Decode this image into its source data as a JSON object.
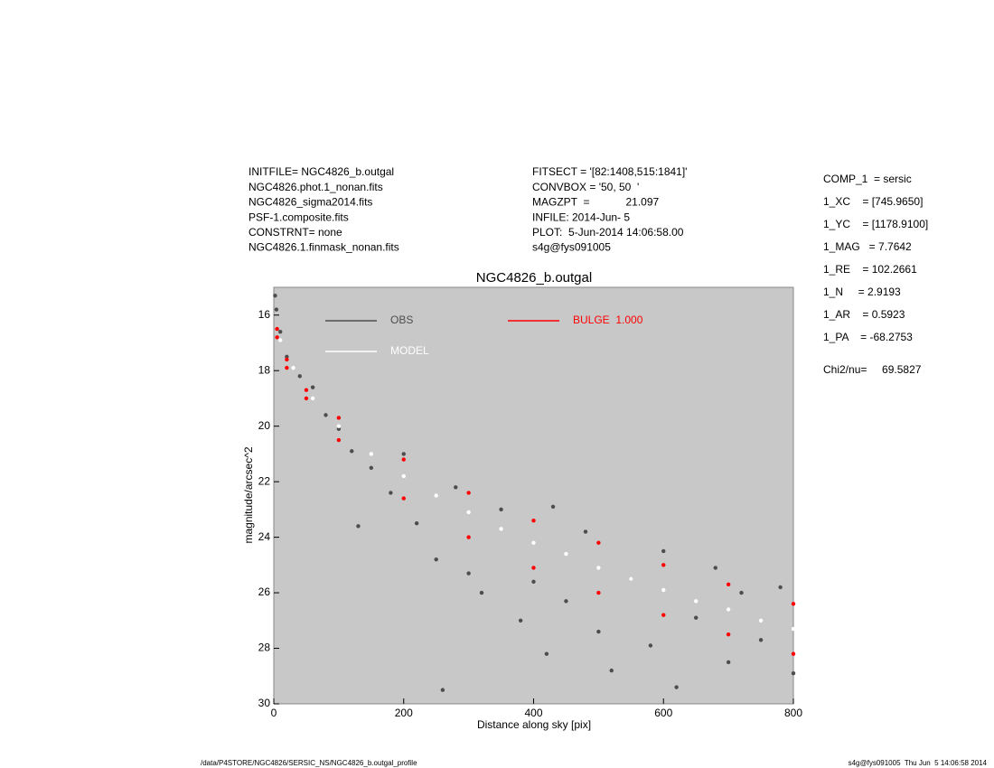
{
  "chart_data": {
    "type": "scatter",
    "title": "NGC4826_b.outgal",
    "xlabel": "Distance along sky [pix]",
    "ylabel": "magnitude/arcsec^2",
    "xlim": [
      0,
      800
    ],
    "ylim": [
      30,
      15
    ],
    "xticks": [
      0,
      200,
      400,
      600,
      800
    ],
    "yticks": [
      16,
      18,
      20,
      22,
      24,
      26,
      28,
      30
    ],
    "background": "#c8c8c8",
    "series": [
      {
        "name": "OBS",
        "color": "#4d4d4d",
        "x": [
          2,
          4,
          10,
          20,
          40,
          60,
          80,
          100,
          120,
          130,
          150,
          180,
          200,
          220,
          250,
          260,
          280,
          300,
          320,
          350,
          380,
          400,
          420,
          430,
          450,
          480,
          500,
          520,
          550,
          580,
          600,
          620,
          650,
          680,
          700,
          720,
          750,
          780,
          800
        ],
        "values": [
          15.3,
          15.8,
          16.6,
          17.5,
          18.2,
          18.6,
          19.6,
          20.1,
          20.9,
          23.6,
          21.5,
          22.4,
          21.0,
          23.5,
          24.8,
          29.5,
          22.2,
          25.3,
          26.0,
          23.0,
          27.0,
          25.6,
          28.2,
          22.9,
          26.3,
          23.8,
          27.4,
          28.8,
          25.5,
          27.9,
          24.5,
          29.4,
          26.9,
          25.1,
          28.5,
          26.0,
          27.7,
          25.8,
          28.9
        ]
      },
      {
        "name": "MODEL",
        "color": "#ffffff",
        "x": [
          10,
          30,
          60,
          100,
          150,
          200,
          250,
          300,
          350,
          400,
          450,
          500,
          550,
          600,
          650,
          700,
          750,
          800
        ],
        "values": [
          16.9,
          17.9,
          19.0,
          20.0,
          21.0,
          21.8,
          22.5,
          23.1,
          23.7,
          24.2,
          24.6,
          25.1,
          25.5,
          25.9,
          26.3,
          26.6,
          27.0,
          27.3
        ]
      },
      {
        "name": "BULGE  1.000",
        "color": "#ff0000",
        "x": [
          5,
          20,
          50,
          100,
          200,
          300,
          400,
          500,
          600,
          700,
          800,
          5,
          20,
          50,
          100,
          200,
          300,
          400,
          500,
          600,
          700,
          800
        ],
        "values": [
          16.5,
          17.6,
          18.7,
          19.7,
          21.2,
          22.4,
          23.4,
          24.2,
          25.0,
          25.7,
          26.4,
          16.8,
          17.9,
          19.0,
          20.5,
          22.6,
          24.0,
          25.1,
          26.0,
          26.8,
          27.5,
          28.2
        ]
      }
    ]
  },
  "info_left": [
    "INITFILE= NGC4826_b.outgal",
    "NGC4826.phot.1_nonan.fits",
    "NGC4826_sigma2014.fits",
    "PSF-1.composite.fits",
    "CONSTRNT= none",
    "NGC4826.1.finmask_nonan.fits"
  ],
  "info_middle": [
    "FITSECT = '[82:1408,515:1841]'",
    "CONVBOX = '50, 50  '",
    "MAGZPT  =            21.097",
    "INFILE: 2014-Jun- 5",
    "PLOT:  5-Jun-2014 14:06:58.00",
    "s4g@fys091005"
  ],
  "info_right": [
    "COMP_1  = sersic",
    "1_XC    = [745.9650]",
    "1_YC    = [1178.9100]",
    "1_MAG   = 7.7642",
    "1_RE    = 102.2661",
    "1_N     = 2.9193",
    "1_AR    = 0.5923",
    "1_PA    = -68.2753"
  ],
  "chi2": "Chi2/nu=     69.5827",
  "footer_left": "/data/P4STORE/NGC4826/SERSIC_NS/NGC4826_b.outgal_profile",
  "footer_right": "s4g@fys091005  Thu Jun  5 14:06:58 2014"
}
